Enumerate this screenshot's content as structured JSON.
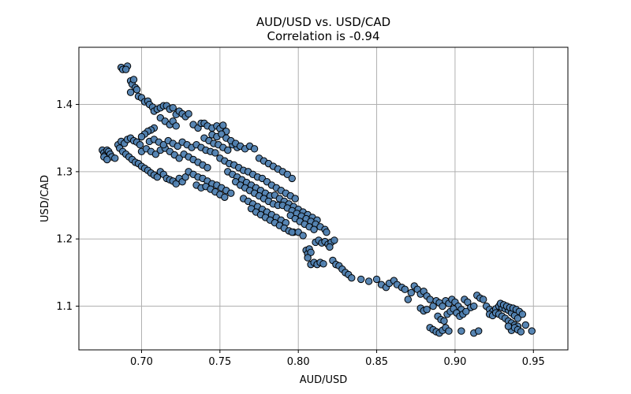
{
  "chart_data": {
    "type": "scatter",
    "title": "AUD/USD vs. USD/CAD",
    "subtitle": "Correlation is -0.94",
    "xlabel": "AUD/USD",
    "ylabel": "USD/CAD",
    "xlim": [
      0.66,
      0.972
    ],
    "ylim": [
      1.035,
      1.485
    ],
    "xticks": [
      0.7,
      0.75,
      0.8,
      0.85,
      0.9,
      0.95
    ],
    "xtick_labels": [
      "0.70",
      "0.75",
      "0.80",
      "0.85",
      "0.90",
      "0.95"
    ],
    "yticks": [
      1.1,
      1.2,
      1.3,
      1.4
    ],
    "ytick_labels": [
      "1.1",
      "1.2",
      "1.3",
      "1.4"
    ],
    "grid": true,
    "marker_color": "#4f7fb0",
    "marker_edge": "#000000",
    "points": [
      [
        0.687,
        1.455
      ],
      [
        0.688,
        1.452
      ],
      [
        0.691,
        1.457
      ],
      [
        0.69,
        1.452
      ],
      [
        0.693,
        1.435
      ],
      [
        0.694,
        1.43
      ],
      [
        0.695,
        1.437
      ],
      [
        0.693,
        1.418
      ],
      [
        0.696,
        1.425
      ],
      [
        0.697,
        1.422
      ],
      [
        0.698,
        1.412
      ],
      [
        0.7,
        1.41
      ],
      [
        0.702,
        1.404
      ],
      [
        0.704,
        1.405
      ],
      [
        0.705,
        1.4
      ],
      [
        0.707,
        1.396
      ],
      [
        0.708,
        1.39
      ],
      [
        0.71,
        1.393
      ],
      [
        0.712,
        1.395
      ],
      [
        0.714,
        1.398
      ],
      [
        0.716,
        1.398
      ],
      [
        0.718,
        1.393
      ],
      [
        0.72,
        1.395
      ],
      [
        0.722,
        1.385
      ],
      [
        0.724,
        1.39
      ],
      [
        0.726,
        1.386
      ],
      [
        0.728,
        1.382
      ],
      [
        0.73,
        1.386
      ],
      [
        0.712,
        1.38
      ],
      [
        0.715,
        1.375
      ],
      [
        0.718,
        1.37
      ],
      [
        0.72,
        1.375
      ],
      [
        0.722,
        1.368
      ],
      [
        0.733,
        1.37
      ],
      [
        0.736,
        1.365
      ],
      [
        0.738,
        1.372
      ],
      [
        0.74,
        1.372
      ],
      [
        0.742,
        1.368
      ],
      [
        0.745,
        1.365
      ],
      [
        0.748,
        1.368
      ],
      [
        0.75,
        1.364
      ],
      [
        0.752,
        1.369
      ],
      [
        0.754,
        1.36
      ],
      [
        0.708,
        1.365
      ],
      [
        0.706,
        1.362
      ],
      [
        0.704,
        1.36
      ],
      [
        0.702,
        1.356
      ],
      [
        0.7,
        1.352
      ],
      [
        0.675,
        1.332
      ],
      [
        0.676,
        1.328
      ],
      [
        0.677,
        1.325
      ],
      [
        0.678,
        1.332
      ],
      [
        0.679,
        1.33
      ],
      [
        0.68,
        1.326
      ],
      [
        0.681,
        1.322
      ],
      [
        0.683,
        1.32
      ],
      [
        0.676,
        1.322
      ],
      [
        0.678,
        1.318
      ],
      [
        0.685,
        1.34
      ],
      [
        0.687,
        1.345
      ],
      [
        0.689,
        1.342
      ],
      [
        0.691,
        1.348
      ],
      [
        0.693,
        1.35
      ],
      [
        0.695,
        1.346
      ],
      [
        0.697,
        1.344
      ],
      [
        0.699,
        1.34
      ],
      [
        0.686,
        1.335
      ],
      [
        0.688,
        1.33
      ],
      [
        0.69,
        1.326
      ],
      [
        0.692,
        1.322
      ],
      [
        0.694,
        1.318
      ],
      [
        0.696,
        1.314
      ],
      [
        0.698,
        1.312
      ],
      [
        0.7,
        1.308
      ],
      [
        0.702,
        1.305
      ],
      [
        0.704,
        1.302
      ],
      [
        0.706,
        1.298
      ],
      [
        0.708,
        1.295
      ],
      [
        0.71,
        1.292
      ],
      [
        0.712,
        1.3
      ],
      [
        0.714,
        1.296
      ],
      [
        0.716,
        1.29
      ],
      [
        0.718,
        1.288
      ],
      [
        0.72,
        1.286
      ],
      [
        0.722,
        1.282
      ],
      [
        0.724,
        1.29
      ],
      [
        0.726,
        1.285
      ],
      [
        0.728,
        1.292
      ],
      [
        0.7,
        1.33
      ],
      [
        0.703,
        1.334
      ],
      [
        0.706,
        1.33
      ],
      [
        0.709,
        1.326
      ],
      [
        0.712,
        1.332
      ],
      [
        0.715,
        1.335
      ],
      [
        0.718,
        1.33
      ],
      [
        0.721,
        1.325
      ],
      [
        0.724,
        1.32
      ],
      [
        0.727,
        1.326
      ],
      [
        0.73,
        1.322
      ],
      [
        0.733,
        1.318
      ],
      [
        0.736,
        1.314
      ],
      [
        0.739,
        1.31
      ],
      [
        0.742,
        1.306
      ],
      [
        0.705,
        1.345
      ],
      [
        0.708,
        1.348
      ],
      [
        0.711,
        1.344
      ],
      [
        0.714,
        1.34
      ],
      [
        0.717,
        1.346
      ],
      [
        0.72,
        1.342
      ],
      [
        0.723,
        1.338
      ],
      [
        0.726,
        1.344
      ],
      [
        0.729,
        1.34
      ],
      [
        0.732,
        1.336
      ],
      [
        0.735,
        1.34
      ],
      [
        0.738,
        1.336
      ],
      [
        0.741,
        1.332
      ],
      [
        0.744,
        1.33
      ],
      [
        0.747,
        1.328
      ],
      [
        0.73,
        1.3
      ],
      [
        0.733,
        1.296
      ],
      [
        0.736,
        1.292
      ],
      [
        0.739,
        1.29
      ],
      [
        0.742,
        1.286
      ],
      [
        0.745,
        1.282
      ],
      [
        0.748,
        1.28
      ],
      [
        0.751,
        1.276
      ],
      [
        0.754,
        1.272
      ],
      [
        0.757,
        1.268
      ],
      [
        0.735,
        1.28
      ],
      [
        0.738,
        1.276
      ],
      [
        0.741,
        1.278
      ],
      [
        0.744,
        1.274
      ],
      [
        0.747,
        1.27
      ],
      [
        0.75,
        1.266
      ],
      [
        0.753,
        1.262
      ],
      [
        0.74,
        1.35
      ],
      [
        0.743,
        1.346
      ],
      [
        0.746,
        1.342
      ],
      [
        0.749,
        1.34
      ],
      [
        0.752,
        1.336
      ],
      [
        0.755,
        1.332
      ],
      [
        0.758,
        1.34
      ],
      [
        0.761,
        1.336
      ],
      [
        0.745,
        1.355
      ],
      [
        0.748,
        1.352
      ],
      [
        0.751,
        1.356
      ],
      [
        0.754,
        1.35
      ],
      [
        0.757,
        1.346
      ],
      [
        0.76,
        1.342
      ],
      [
        0.763,
        1.338
      ],
      [
        0.766,
        1.334
      ],
      [
        0.769,
        1.338
      ],
      [
        0.772,
        1.334
      ],
      [
        0.75,
        1.32
      ],
      [
        0.753,
        1.316
      ],
      [
        0.756,
        1.312
      ],
      [
        0.759,
        1.31
      ],
      [
        0.762,
        1.306
      ],
      [
        0.765,
        1.302
      ],
      [
        0.768,
        1.3
      ],
      [
        0.771,
        1.296
      ],
      [
        0.774,
        1.292
      ],
      [
        0.777,
        1.29
      ],
      [
        0.755,
        1.3
      ],
      [
        0.758,
        1.296
      ],
      [
        0.761,
        1.292
      ],
      [
        0.764,
        1.288
      ],
      [
        0.767,
        1.284
      ],
      [
        0.77,
        1.28
      ],
      [
        0.773,
        1.276
      ],
      [
        0.776,
        1.272
      ],
      [
        0.779,
        1.268
      ],
      [
        0.782,
        1.264
      ],
      [
        0.76,
        1.285
      ],
      [
        0.763,
        1.28
      ],
      [
        0.766,
        1.276
      ],
      [
        0.769,
        1.272
      ],
      [
        0.772,
        1.268
      ],
      [
        0.775,
        1.264
      ],
      [
        0.778,
        1.26
      ],
      [
        0.781,
        1.256
      ],
      [
        0.784,
        1.252
      ],
      [
        0.787,
        1.25
      ],
      [
        0.765,
        1.26
      ],
      [
        0.768,
        1.256
      ],
      [
        0.771,
        1.252
      ],
      [
        0.774,
        1.248
      ],
      [
        0.777,
        1.244
      ],
      [
        0.78,
        1.24
      ],
      [
        0.783,
        1.236
      ],
      [
        0.786,
        1.232
      ],
      [
        0.789,
        1.228
      ],
      [
        0.792,
        1.224
      ],
      [
        0.77,
        1.245
      ],
      [
        0.773,
        1.24
      ],
      [
        0.776,
        1.236
      ],
      [
        0.779,
        1.232
      ],
      [
        0.782,
        1.228
      ],
      [
        0.785,
        1.224
      ],
      [
        0.788,
        1.22
      ],
      [
        0.791,
        1.216
      ],
      [
        0.794,
        1.212
      ],
      [
        0.797,
        1.21
      ],
      [
        0.775,
        1.32
      ],
      [
        0.778,
        1.316
      ],
      [
        0.781,
        1.312
      ],
      [
        0.784,
        1.308
      ],
      [
        0.787,
        1.304
      ],
      [
        0.79,
        1.3
      ],
      [
        0.793,
        1.296
      ],
      [
        0.796,
        1.29
      ],
      [
        0.78,
        1.285
      ],
      [
        0.783,
        1.28
      ],
      [
        0.786,
        1.276
      ],
      [
        0.789,
        1.272
      ],
      [
        0.792,
        1.268
      ],
      [
        0.795,
        1.264
      ],
      [
        0.798,
        1.26
      ],
      [
        0.785,
        1.265
      ],
      [
        0.788,
        1.26
      ],
      [
        0.791,
        1.256
      ],
      [
        0.794,
        1.252
      ],
      [
        0.797,
        1.248
      ],
      [
        0.8,
        1.244
      ],
      [
        0.803,
        1.24
      ],
      [
        0.806,
        1.236
      ],
      [
        0.809,
        1.232
      ],
      [
        0.812,
        1.228
      ],
      [
        0.79,
        1.25
      ],
      [
        0.793,
        1.246
      ],
      [
        0.796,
        1.242
      ],
      [
        0.799,
        1.238
      ],
      [
        0.802,
        1.234
      ],
      [
        0.805,
        1.23
      ],
      [
        0.808,
        1.226
      ],
      [
        0.811,
        1.222
      ],
      [
        0.814,
        1.218
      ],
      [
        0.817,
        1.214
      ],
      [
        0.795,
        1.235
      ],
      [
        0.798,
        1.23
      ],
      [
        0.801,
        1.226
      ],
      [
        0.804,
        1.222
      ],
      [
        0.807,
        1.218
      ],
      [
        0.81,
        1.214
      ],
      [
        0.796,
        1.21
      ],
      [
        0.8,
        1.21
      ],
      [
        0.803,
        1.205
      ],
      [
        0.805,
        1.183
      ],
      [
        0.806,
        1.178
      ],
      [
        0.807,
        1.185
      ],
      [
        0.808,
        1.18
      ],
      [
        0.806,
        1.172
      ],
      [
        0.808,
        1.162
      ],
      [
        0.81,
        1.165
      ],
      [
        0.812,
        1.162
      ],
      [
        0.814,
        1.165
      ],
      [
        0.816,
        1.163
      ],
      [
        0.811,
        1.195
      ],
      [
        0.813,
        1.198
      ],
      [
        0.815,
        1.194
      ],
      [
        0.817,
        1.196
      ],
      [
        0.819,
        1.192
      ],
      [
        0.821,
        1.195
      ],
      [
        0.823,
        1.198
      ],
      [
        0.82,
        1.188
      ],
      [
        0.818,
        1.21
      ],
      [
        0.822,
        1.168
      ],
      [
        0.824,
        1.162
      ],
      [
        0.826,
        1.16
      ],
      [
        0.828,
        1.155
      ],
      [
        0.83,
        1.15
      ],
      [
        0.832,
        1.147
      ],
      [
        0.834,
        1.142
      ],
      [
        0.84,
        1.14
      ],
      [
        0.845,
        1.137
      ],
      [
        0.85,
        1.14
      ],
      [
        0.853,
        1.132
      ],
      [
        0.856,
        1.128
      ],
      [
        0.858,
        1.134
      ],
      [
        0.861,
        1.138
      ],
      [
        0.863,
        1.132
      ],
      [
        0.866,
        1.128
      ],
      [
        0.868,
        1.125
      ],
      [
        0.87,
        1.11
      ],
      [
        0.872,
        1.12
      ],
      [
        0.874,
        1.13
      ],
      [
        0.876,
        1.125
      ],
      [
        0.878,
        1.118
      ],
      [
        0.88,
        1.122
      ],
      [
        0.882,
        1.115
      ],
      [
        0.884,
        1.11
      ],
      [
        0.886,
        1.1
      ],
      [
        0.888,
        1.108
      ],
      [
        0.89,
        1.105
      ],
      [
        0.892,
        1.1
      ],
      [
        0.894,
        1.108
      ],
      [
        0.896,
        1.104
      ],
      [
        0.898,
        1.11
      ],
      [
        0.9,
        1.106
      ],
      [
        0.902,
        1.1
      ],
      [
        0.904,
        1.095
      ],
      [
        0.906,
        1.11
      ],
      [
        0.908,
        1.106
      ],
      [
        0.91,
        1.098
      ],
      [
        0.912,
        1.1
      ],
      [
        0.914,
        1.116
      ],
      [
        0.916,
        1.112
      ],
      [
        0.878,
        1.097
      ],
      [
        0.88,
        1.093
      ],
      [
        0.882,
        1.095
      ],
      [
        0.884,
        1.068
      ],
      [
        0.886,
        1.065
      ],
      [
        0.888,
        1.062
      ],
      [
        0.89,
        1.06
      ],
      [
        0.892,
        1.064
      ],
      [
        0.894,
        1.068
      ],
      [
        0.896,
        1.063
      ],
      [
        0.889,
        1.085
      ],
      [
        0.891,
        1.08
      ],
      [
        0.893,
        1.078
      ],
      [
        0.895,
        1.088
      ],
      [
        0.897,
        1.092
      ],
      [
        0.899,
        1.096
      ],
      [
        0.901,
        1.09
      ],
      [
        0.903,
        1.085
      ],
      [
        0.905,
        1.088
      ],
      [
        0.907,
        1.092
      ],
      [
        0.904,
        1.063
      ],
      [
        0.912,
        1.06
      ],
      [
        0.915,
        1.063
      ],
      [
        0.918,
        1.11
      ],
      [
        0.92,
        1.1
      ],
      [
        0.922,
        1.095
      ],
      [
        0.924,
        1.092
      ],
      [
        0.926,
        1.096
      ],
      [
        0.928,
        1.1
      ],
      [
        0.93,
        1.098
      ],
      [
        0.932,
        1.096
      ],
      [
        0.934,
        1.094
      ],
      [
        0.936,
        1.09
      ],
      [
        0.938,
        1.086
      ],
      [
        0.94,
        1.082
      ],
      [
        0.922,
        1.088
      ],
      [
        0.924,
        1.086
      ],
      [
        0.926,
        1.09
      ],
      [
        0.928,
        1.088
      ],
      [
        0.93,
        1.085
      ],
      [
        0.932,
        1.082
      ],
      [
        0.934,
        1.078
      ],
      [
        0.936,
        1.075
      ],
      [
        0.938,
        1.072
      ],
      [
        0.94,
        1.07
      ],
      [
        0.929,
        1.104
      ],
      [
        0.931,
        1.102
      ],
      [
        0.933,
        1.1
      ],
      [
        0.935,
        1.098
      ],
      [
        0.937,
        1.097
      ],
      [
        0.939,
        1.095
      ],
      [
        0.941,
        1.092
      ],
      [
        0.943,
        1.088
      ],
      [
        0.945,
        1.072
      ],
      [
        0.949,
        1.063
      ],
      [
        0.936,
        1.064
      ],
      [
        0.938,
        1.068
      ],
      [
        0.94,
        1.065
      ],
      [
        0.942,
        1.062
      ],
      [
        0.934,
        1.07
      ]
    ]
  }
}
